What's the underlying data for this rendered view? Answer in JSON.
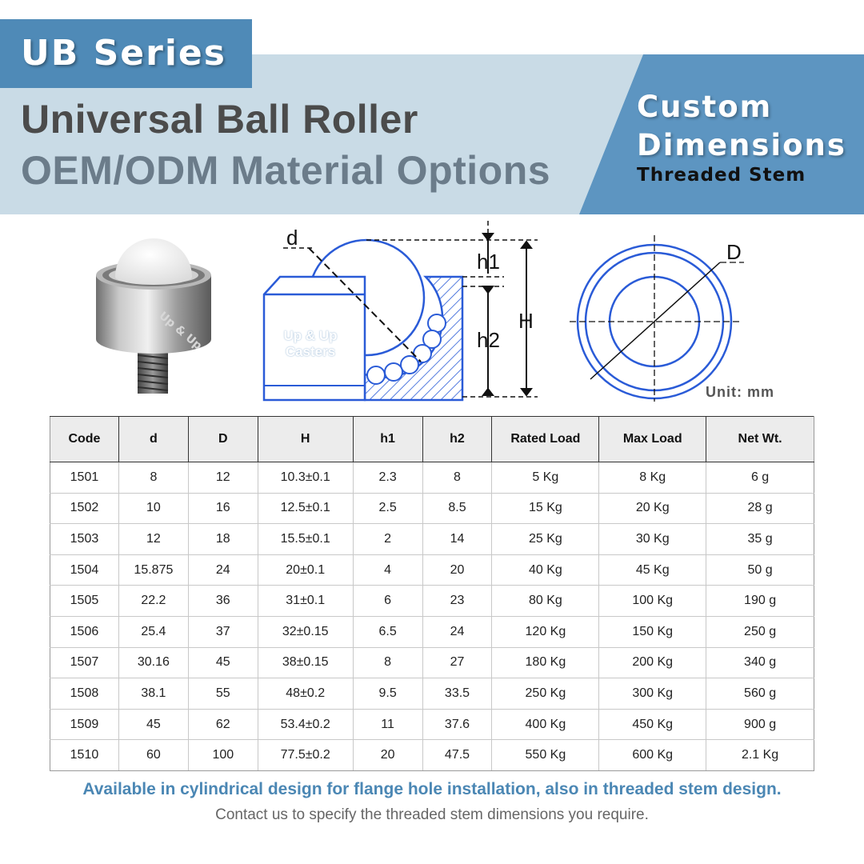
{
  "header": {
    "series_label": "UB Series",
    "title_line1": "Universal Ball Roller",
    "title_line2": "OEM/ODM Material Options",
    "custom_line1": "Custom",
    "custom_line2": "Dimensions",
    "custom_line3": "Threaded Stem"
  },
  "diagram": {
    "label_d": "d",
    "label_h1": "h1",
    "label_h2": "h2",
    "label_H": "H",
    "label_D": "D",
    "watermark": [
      "Up & Up",
      "Casters"
    ],
    "unit": "Unit: mm"
  },
  "colors": {
    "accent_blue": "#4f8ab7",
    "band_light": "#c9dbe6",
    "line_blue": "#2a5bd7",
    "note_blue": "#4b87b4"
  },
  "table": {
    "headers": [
      "Code",
      "d",
      "D",
      "H",
      "h1",
      "h2",
      "Rated Load",
      "Max Load",
      "Net Wt."
    ],
    "rows": [
      [
        "1501",
        "8",
        "12",
        "10.3±0.1",
        "2.3",
        "8",
        "5 Kg",
        "8 Kg",
        "6 g"
      ],
      [
        "1502",
        "10",
        "16",
        "12.5±0.1",
        "2.5",
        "8.5",
        "15 Kg",
        "20 Kg",
        "28 g"
      ],
      [
        "1503",
        "12",
        "18",
        "15.5±0.1",
        "2",
        "14",
        "25 Kg",
        "30 Kg",
        "35 g"
      ],
      [
        "1504",
        "15.875",
        "24",
        "20±0.1",
        "4",
        "20",
        "40 Kg",
        "45 Kg",
        "50 g"
      ],
      [
        "1505",
        "22.2",
        "36",
        "31±0.1",
        "6",
        "23",
        "80 Kg",
        "100 Kg",
        "190 g"
      ],
      [
        "1506",
        "25.4",
        "37",
        "32±0.15",
        "6.5",
        "24",
        "120 Kg",
        "150 Kg",
        "250 g"
      ],
      [
        "1507",
        "30.16",
        "45",
        "38±0.15",
        "8",
        "27",
        "180 Kg",
        "200 Kg",
        "340 g"
      ],
      [
        "1508",
        "38.1",
        "55",
        "48±0.2",
        "9.5",
        "33.5",
        "250 Kg",
        "300 Kg",
        "560 g"
      ],
      [
        "1509",
        "45",
        "62",
        "53.4±0.2",
        "11",
        "37.6",
        "400 Kg",
        "450 Kg",
        "900 g"
      ],
      [
        "1510",
        "60",
        "100",
        "77.5±0.2",
        "20",
        "47.5",
        "550 Kg",
        "600 Kg",
        "2.1 Kg"
      ]
    ]
  },
  "footer": {
    "note_line1": "Available in cylindrical design for flange hole installation, also in threaded stem design.",
    "note_line2": "Contact us to specify the threaded stem dimensions you require."
  }
}
